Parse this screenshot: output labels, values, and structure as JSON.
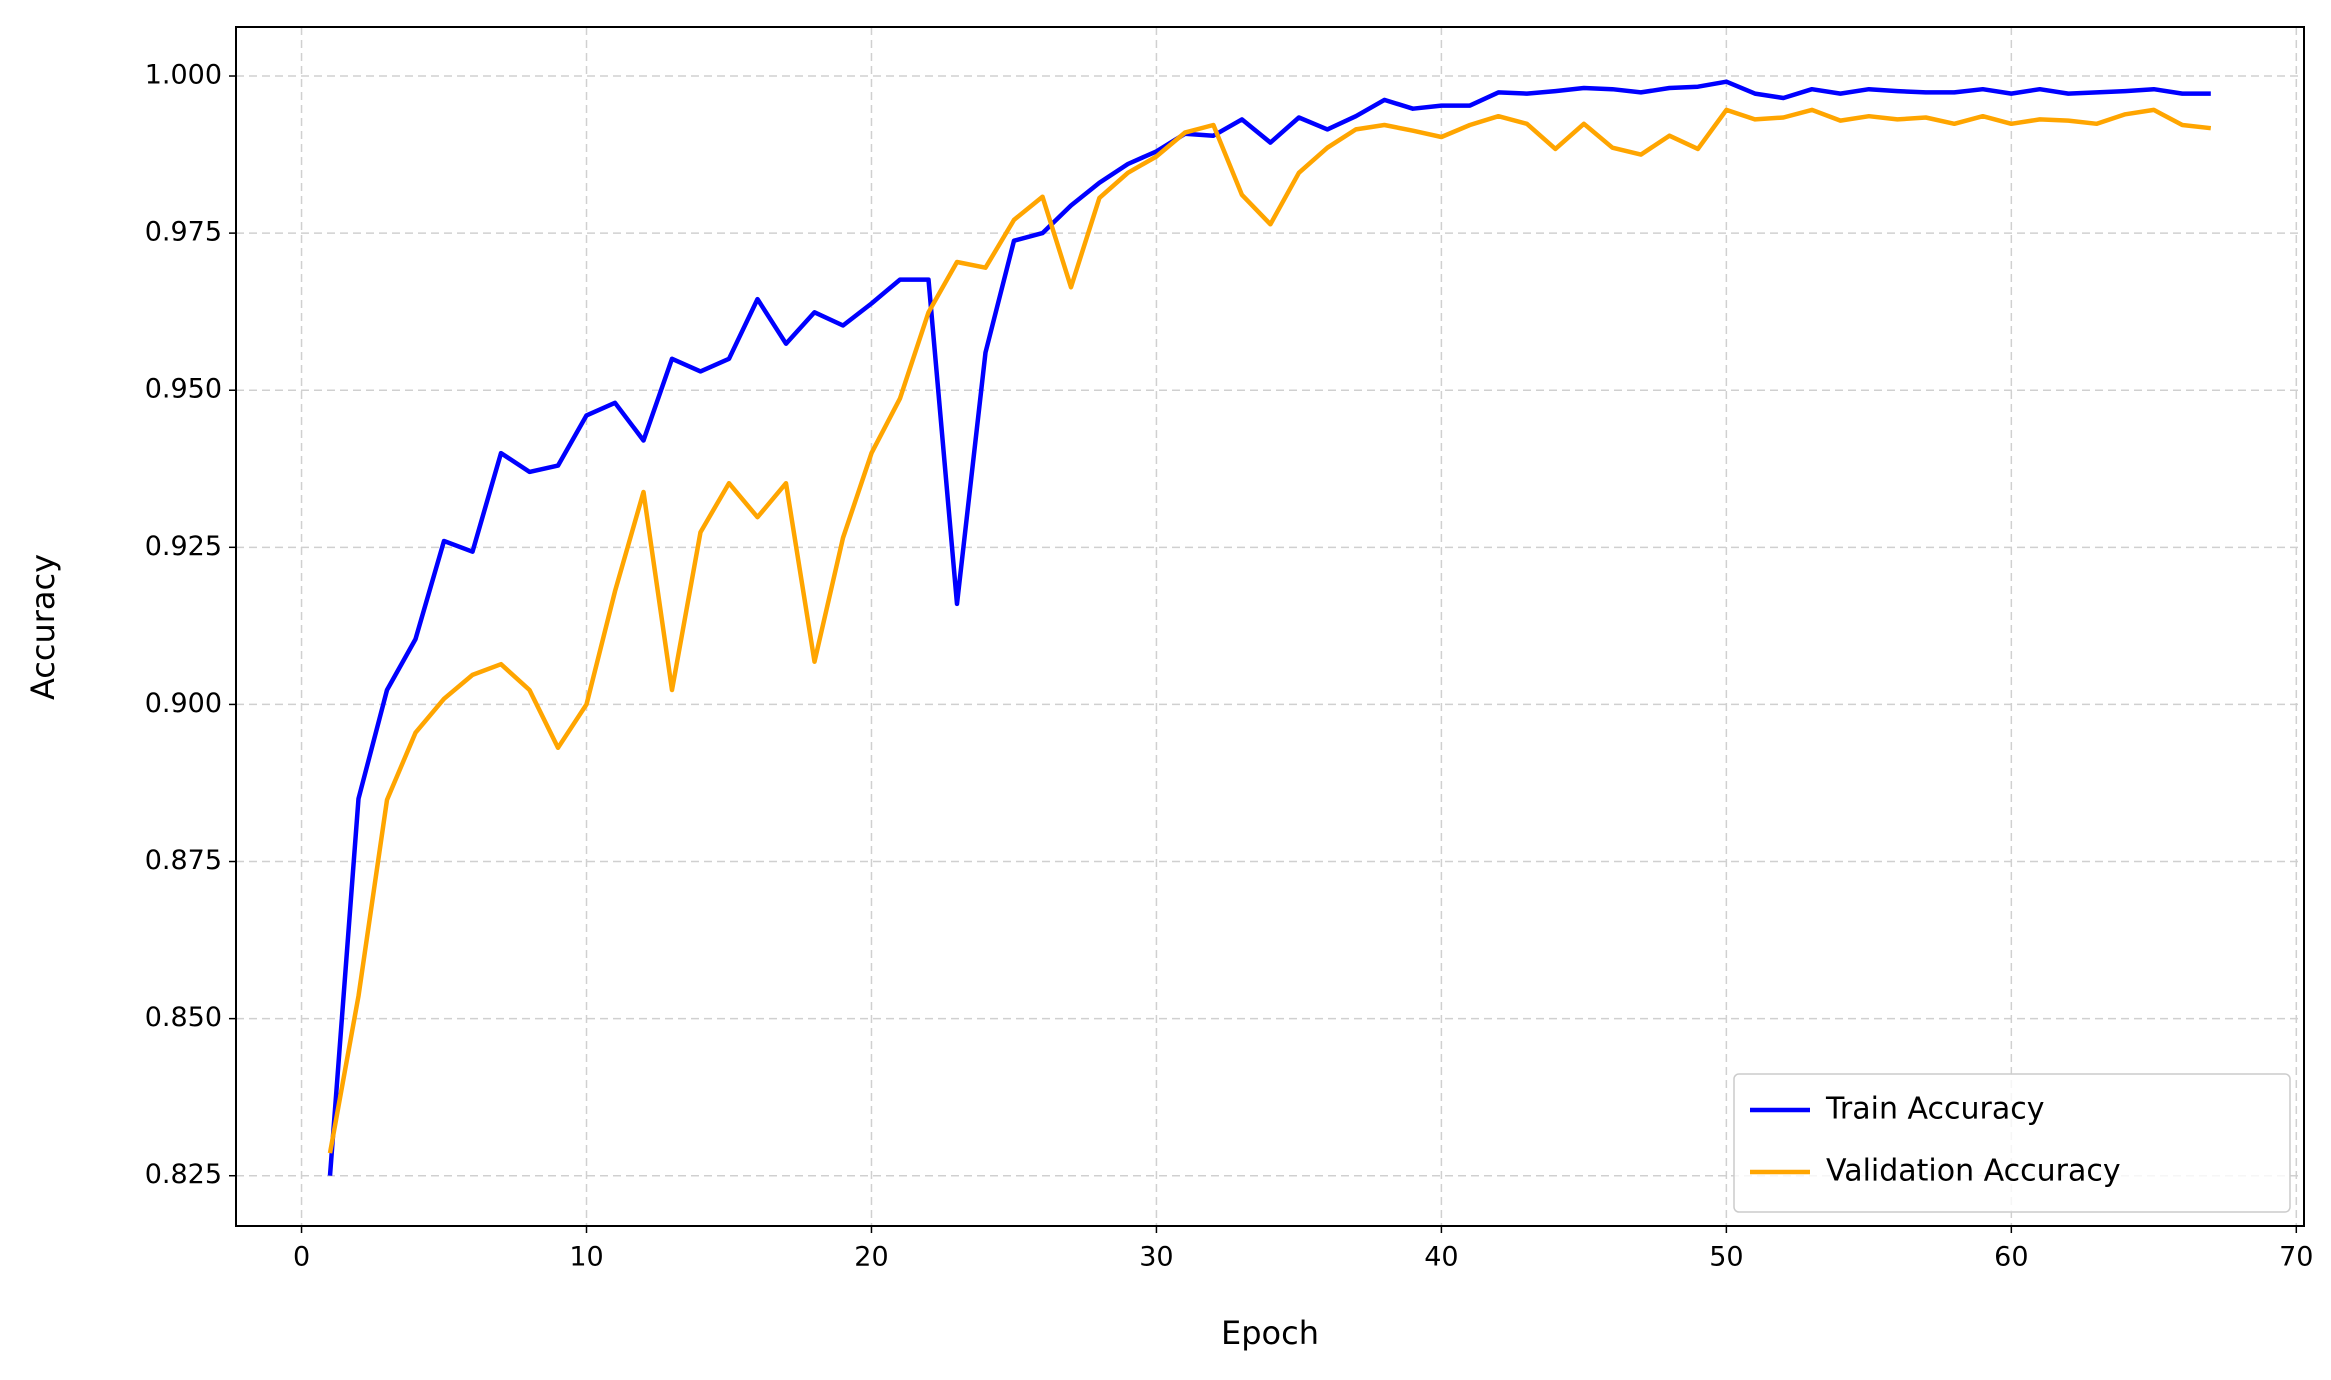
{
  "chart_data": {
    "type": "line",
    "xlabel": "Epoch",
    "ylabel": "Accuracy",
    "x": [
      1,
      2,
      3,
      4,
      5,
      6,
      7,
      8,
      9,
      10,
      11,
      12,
      13,
      14,
      15,
      16,
      17,
      18,
      19,
      20,
      21,
      22,
      23,
      24,
      25,
      26,
      27,
      28,
      29,
      30,
      31,
      32,
      33,
      34,
      35,
      36,
      37,
      38,
      39,
      40,
      41,
      42,
      43,
      44,
      45,
      46,
      47,
      48,
      49,
      50,
      51,
      52,
      53,
      54,
      55,
      56,
      57,
      58,
      59,
      60,
      61,
      62,
      63,
      64,
      65,
      66,
      67
    ],
    "series": [
      {
        "name": "Train Accuracy",
        "color": "#0000ff",
        "values": [
          0.825,
          0.885,
          0.9023,
          0.9104,
          0.926,
          0.9243,
          0.94,
          0.937,
          0.938,
          0.946,
          0.948,
          0.942,
          0.955,
          0.953,
          0.955,
          0.9645,
          0.9574,
          0.9624,
          0.9603,
          0.9638,
          0.9676,
          0.9676,
          0.916,
          0.956,
          0.9738,
          0.975,
          0.9794,
          0.983,
          0.986,
          0.988,
          0.9908,
          0.9905,
          0.9931,
          0.9894,
          0.9934,
          0.9915,
          0.9936,
          0.9962,
          0.9948,
          0.9953,
          0.9953,
          0.9974,
          0.9972,
          0.9976,
          0.9981,
          0.9979,
          0.9974,
          0.9981,
          0.9983,
          0.9991,
          0.9972,
          0.9965,
          0.9979,
          0.9972,
          0.9979,
          0.9976,
          0.9974,
          0.9974,
          0.9979,
          0.9972,
          0.9979,
          0.9972,
          0.9974,
          0.9976,
          0.9979,
          0.9972,
          0.9972
        ]
      },
      {
        "name": "Validation Accuracy",
        "color": "#ffa500",
        "values": [
          0.8286,
          0.8536,
          0.8848,
          0.8955,
          0.9009,
          0.9047,
          0.9064,
          0.9023,
          0.8931,
          0.9,
          0.918,
          0.9338,
          0.9023,
          0.9274,
          0.9352,
          0.9298,
          0.9352,
          0.9068,
          0.9265,
          0.94,
          0.9487,
          0.9624,
          0.9704,
          0.9695,
          0.9771,
          0.9808,
          0.9664,
          0.9806,
          0.9846,
          0.9872,
          0.991,
          0.9922,
          0.9811,
          0.9764,
          0.9846,
          0.9886,
          0.9915,
          0.9922,
          0.9913,
          0.9903,
          0.9922,
          0.9936,
          0.9924,
          0.9884,
          0.9924,
          0.9886,
          0.9875,
          0.9905,
          0.9884,
          0.9946,
          0.9931,
          0.9934,
          0.9946,
          0.9929,
          0.9936,
          0.9931,
          0.9934,
          0.9924,
          0.9936,
          0.9924,
          0.9931,
          0.9929,
          0.9924,
          0.9939,
          0.9946,
          0.9922,
          0.9917
        ]
      }
    ],
    "xlim": [
      -2.3,
      70.27
    ],
    "ylim": [
      0.817,
      1.0078
    ],
    "xticks": [
      0,
      10,
      20,
      30,
      40,
      50,
      60,
      70
    ],
    "yticks": [
      0.825,
      {
        "value": 0.85,
        "label": "0.850"
      },
      0.875,
      {
        "value": 0.9,
        "label": "0.900"
      },
      0.925,
      {
        "value": 0.95,
        "label": "0.950"
      },
      0.975,
      {
        "value": 1,
        "label": "1.000"
      }
    ],
    "grid": true,
    "legend": "lower right"
  }
}
